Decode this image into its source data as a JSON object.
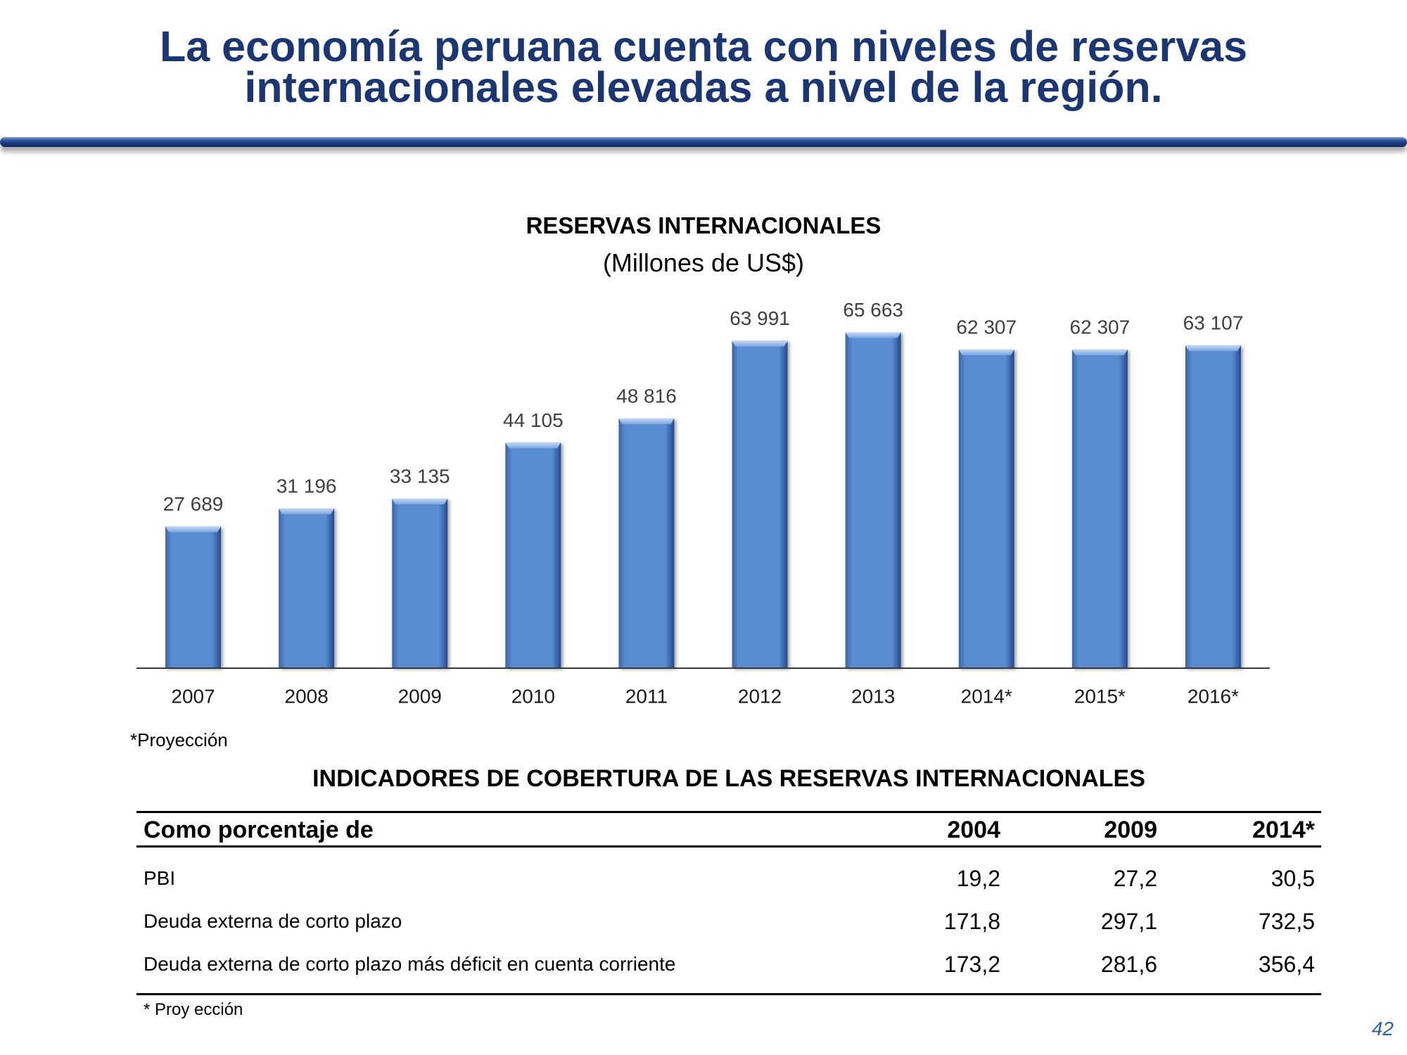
{
  "slide": {
    "title_line1": "La economía peruana cuenta con niveles de reservas",
    "title_line2": "internacionales elevadas a nivel de la región.",
    "page_number": "42"
  },
  "theme": {
    "title_color": "#1a3673",
    "bar_color": "#5a8cd2",
    "rule_color": "#1c3b80",
    "page_number_color": "#2f5fa6"
  },
  "chart_data": [
    {
      "type": "bar",
      "title": "RESERVAS INTERNACIONALES",
      "subtitle": "(Millones de US$)",
      "categories": [
        "2007",
        "2008",
        "2009",
        "2010",
        "2011",
        "2012",
        "2013",
        "2014*",
        "2015*",
        "2016*"
      ],
      "values": [
        27689,
        31196,
        33135,
        44105,
        48816,
        63991,
        65663,
        62307,
        62307,
        63107
      ],
      "value_labels": [
        "27 689",
        "31 196",
        "33 135",
        "44 105",
        "48 816",
        "63 991",
        "65 663",
        "62 307",
        "62 307",
        "63 107"
      ],
      "ylim": [
        0,
        70000
      ],
      "grid": false,
      "note": "*Proyección"
    },
    {
      "type": "table",
      "title": "INDICADORES DE COBERTURA DE LAS RESERVAS INTERNACIONALES",
      "columns": [
        "Como porcentaje de",
        "2004",
        "2009",
        "2014*"
      ],
      "rows": [
        {
          "label": "PBI",
          "values": [
            "19,2",
            "27,2",
            "30,5"
          ]
        },
        {
          "label": "Deuda externa de corto plazo",
          "values": [
            "171,8",
            "297,1",
            "732,5"
          ]
        },
        {
          "label": "Deuda externa de corto plazo más déficit en cuenta corriente",
          "values": [
            "173,2",
            "281,6",
            "356,4"
          ]
        }
      ],
      "footnote": "* Proy ección"
    }
  ]
}
